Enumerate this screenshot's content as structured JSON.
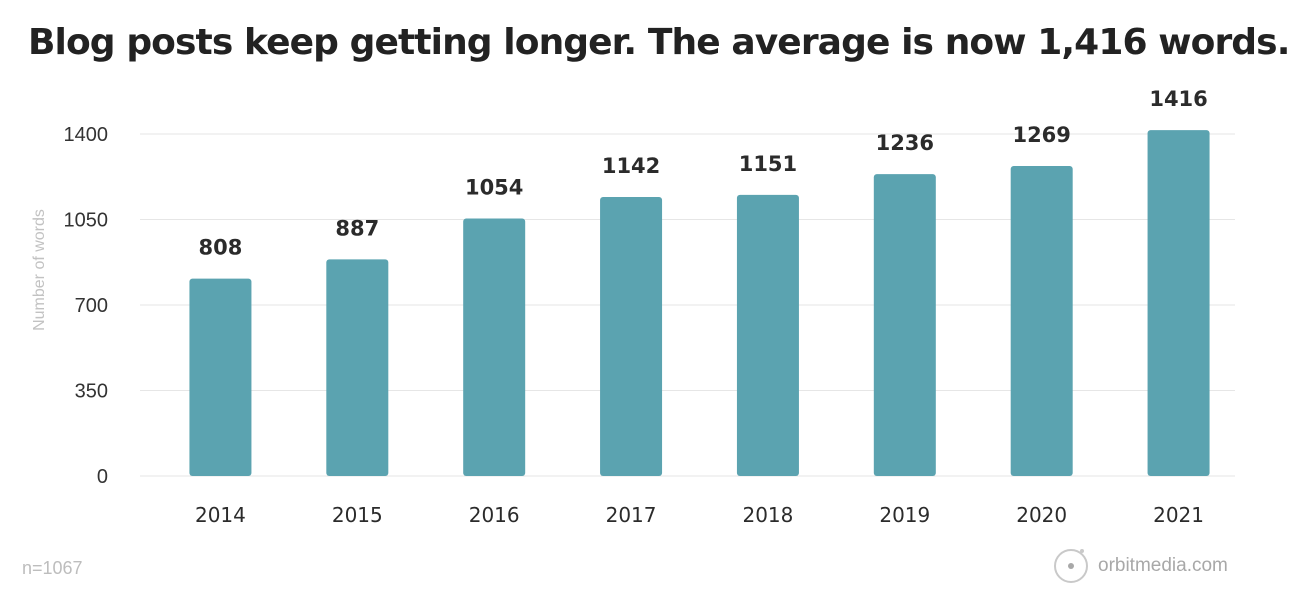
{
  "chart_data": {
    "type": "bar",
    "title": "Blog posts keep getting longer. The average is now 1,416 words.",
    "ylabel": "Number of words",
    "xlabel": "",
    "categories": [
      "2014",
      "2015",
      "2016",
      "2017",
      "2018",
      "2019",
      "2020",
      "2021"
    ],
    "values": [
      808,
      887,
      1054,
      1142,
      1151,
      1236,
      1269,
      1416
    ],
    "data_labels": [
      "808",
      "887",
      "1054",
      "1142",
      "1151",
      "1236",
      "1269",
      "1416"
    ],
    "yticks": [
      0,
      350,
      700,
      1050,
      1400
    ],
    "ytick_labels": [
      "0",
      "350",
      "700",
      "1050",
      "1400"
    ],
    "ylim": [
      0,
      1400
    ],
    "grid": true,
    "bar_color": "#5ba3b0"
  },
  "footer": {
    "note": "n=1067",
    "brand": "orbitmedia.com"
  }
}
